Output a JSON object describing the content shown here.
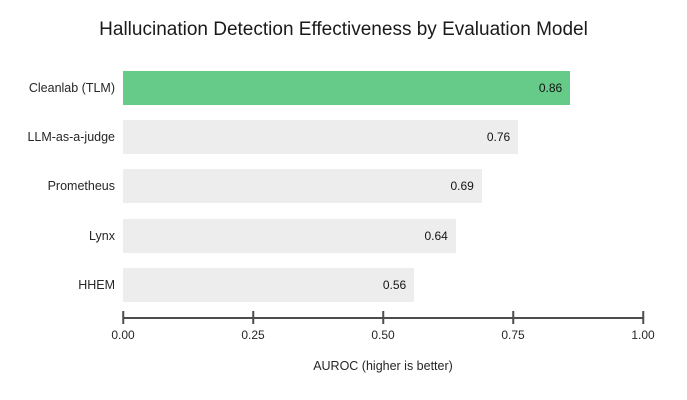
{
  "title": "Hallucination Detection Effectiveness by Evaluation Model",
  "colors": {
    "highlight_green": "#66cb88",
    "bar_gray": "#ededed",
    "axis_gray": "#4d4d4d",
    "text_dark": "#262626",
    "background": "#ffffff"
  },
  "chart_data": {
    "type": "bar",
    "orientation": "horizontal",
    "title": "Hallucination Detection Effectiveness by Evaluation Model",
    "xlabel": "AUROC (higher is better)",
    "ylabel": "",
    "categories": [
      "Cleanlab (TLM)",
      "LLM-as-a-judge",
      "Prometheus",
      "Lynx",
      "HHEM"
    ],
    "values": [
      0.86,
      0.76,
      0.69,
      0.64,
      0.56
    ],
    "value_labels": [
      "0.86",
      "0.76",
      "0.69",
      "0.64",
      "0.56"
    ],
    "bar_colors": [
      "#66cb88",
      "#ededed",
      "#ededed",
      "#ededed",
      "#ededed"
    ],
    "xlim": [
      0,
      1
    ],
    "x_ticks": [
      0,
      0.25,
      0.5,
      0.75,
      1
    ],
    "x_tick_labels": [
      "0.00",
      "0.25",
      "0.50",
      "0.75",
      "1.00"
    ],
    "grid": false,
    "legend": false,
    "value_labels_position": "inside-end"
  }
}
